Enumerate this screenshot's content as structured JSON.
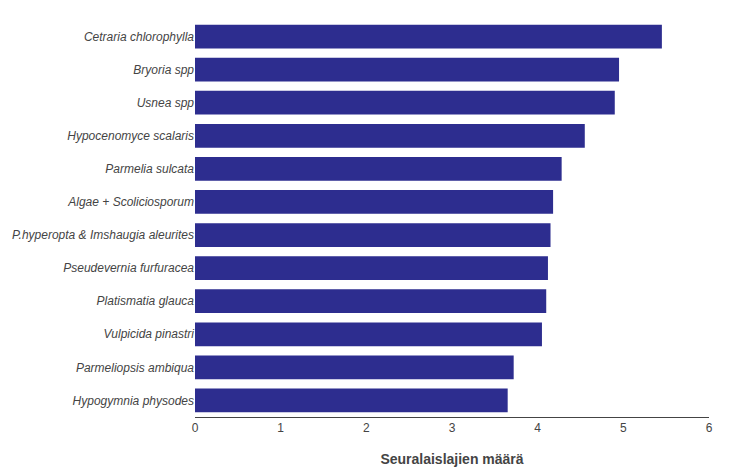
{
  "chart_data": {
    "type": "bar",
    "orientation": "horizontal",
    "categories": [
      "Hypogymnia physodes",
      "Parmeliopsis ambiqua",
      "Vulpicida pinastri",
      "Platismatia glauca",
      "Pseudevernia furfuracea",
      "P.hyperopta & Imshaugia aleurites",
      "Algae + Scoliciosporum",
      "Parmelia sulcata",
      "Hypocenomyce scalaris",
      "Usnea spp",
      "Bryoria spp",
      "Cetraria chlorophylla"
    ],
    "values": [
      3.65,
      3.72,
      4.05,
      4.1,
      4.12,
      4.15,
      4.18,
      4.28,
      4.55,
      4.9,
      4.95,
      5.45
    ],
    "color": "#2d2d8f",
    "xlabel": "Seuralaislajien määrä",
    "xlim": [
      0,
      6
    ],
    "xticks": [
      0,
      1,
      2,
      3,
      4,
      5,
      6
    ],
    "grid": false
  }
}
